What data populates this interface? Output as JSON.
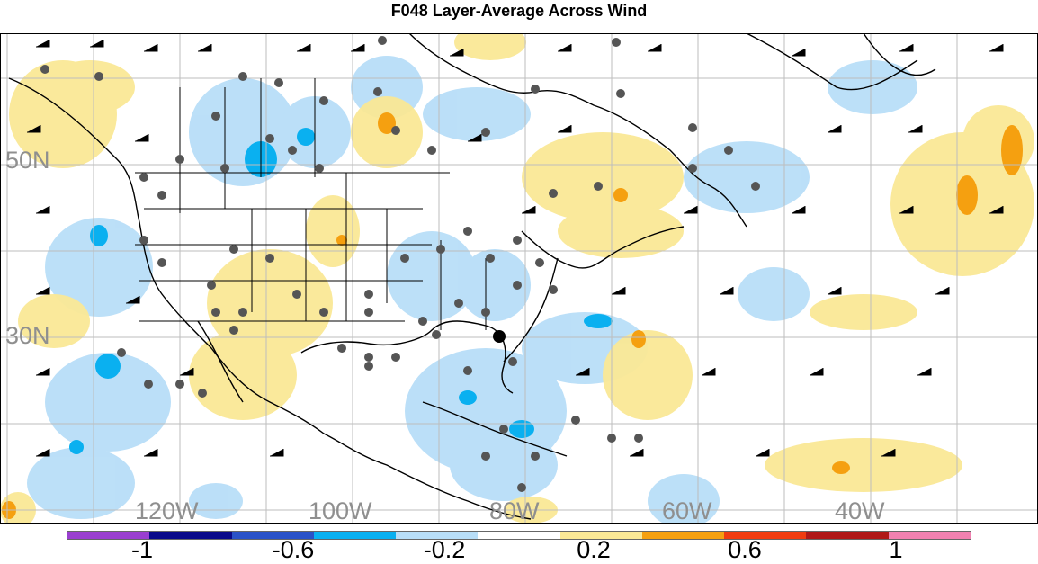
{
  "title": "F048 Layer-Average Across Wind",
  "latitude_labels": [
    "50N",
    "30N"
  ],
  "longitude_labels": [
    "120W",
    "100W",
    "80W",
    "60W",
    "40W"
  ],
  "colorbar": {
    "colors": [
      "#9a3fd0",
      "#0a0a8a",
      "#2a52c8",
      "#0ab0f0",
      "#b8def8",
      "#ffffff",
      "#fae896",
      "#f5a010",
      "#f03c10",
      "#b01818",
      "#f081b0"
    ],
    "tick_labels": [
      "-1",
      "-0.6",
      "-0.2",
      "0.2",
      "0.6",
      "1"
    ]
  }
}
